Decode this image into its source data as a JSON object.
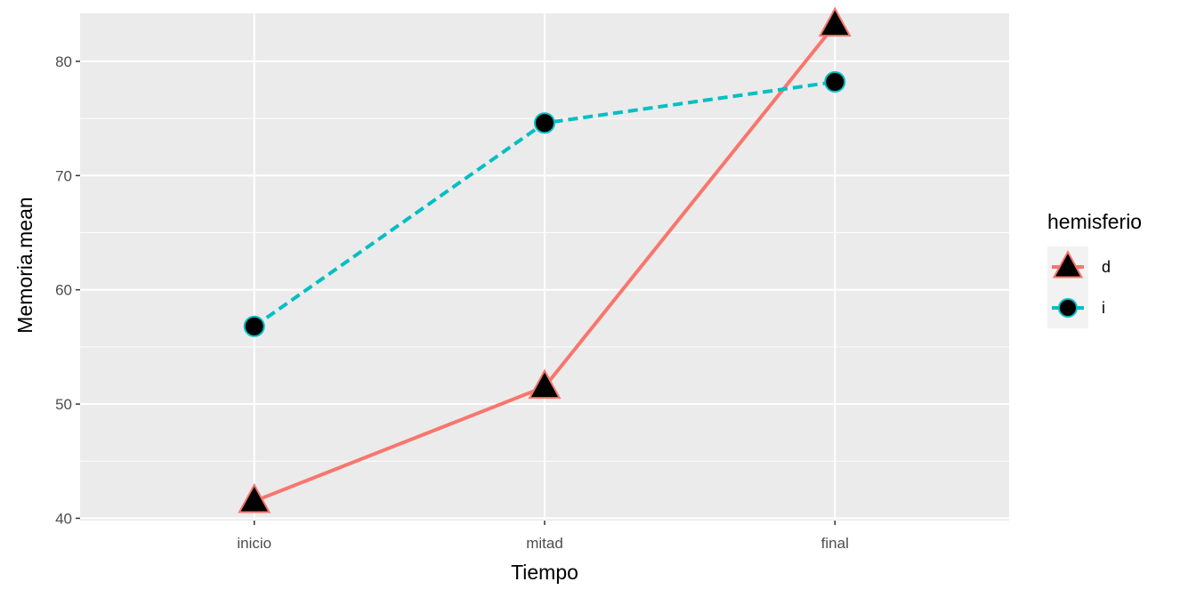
{
  "chart_data": {
    "type": "line",
    "title": "",
    "xlabel": "Tiempo",
    "ylabel": "Memoria.mean",
    "categories": [
      "inicio",
      "mitad",
      "final"
    ],
    "ylim": [
      39.8,
      84.2
    ],
    "yticks": [
      40,
      50,
      60,
      70,
      80
    ],
    "ytick_labels": [
      "40",
      "50",
      "60",
      "70",
      "80"
    ],
    "grid": true,
    "legend": {
      "title": "hemisferio",
      "position": "right"
    },
    "series": [
      {
        "name": "d",
        "values": [
          41.5,
          51.5,
          83.2
        ],
        "color": "#F8766D",
        "line_style": "solid",
        "marker": "triangle"
      },
      {
        "name": "i",
        "values": [
          56.8,
          74.6,
          78.2
        ],
        "color": "#00BFC4",
        "line_style": "dashed",
        "marker": "circle"
      }
    ],
    "panel_background": "#EBEBEB",
    "grid_color": "#FFFFFF"
  }
}
